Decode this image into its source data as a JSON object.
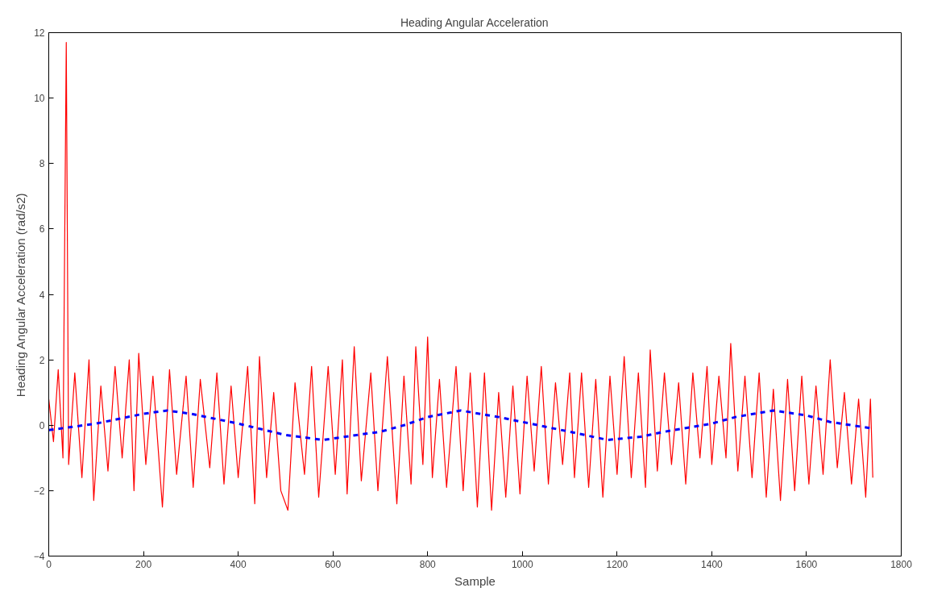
{
  "chart_data": {
    "type": "line",
    "title": "Heading Angular Acceleration",
    "xlabel": "Sample",
    "ylabel": "Heading Angular Acceleration (rad/s2)",
    "xlim": [
      0,
      1800
    ],
    "xticks": [
      0,
      200,
      400,
      600,
      800,
      1000,
      1200,
      1400,
      1600,
      1800
    ],
    "ylim": [
      -4,
      12
    ],
    "yticks": [
      -4,
      -2,
      0,
      2,
      4,
      6,
      8,
      10,
      12
    ],
    "grid": false,
    "series": [
      {
        "color": "#ff0000",
        "line_style": "solid",
        "x": [
          0,
          10,
          20,
          30,
          37,
          42,
          55,
          70,
          85,
          95,
          110,
          125,
          140,
          155,
          170,
          180,
          190,
          205,
          220,
          240,
          255,
          270,
          290,
          305,
          320,
          340,
          355,
          370,
          385,
          400,
          420,
          435,
          445,
          460,
          475,
          490,
          505,
          520,
          540,
          555,
          570,
          590,
          605,
          620,
          630,
          645,
          660,
          680,
          695,
          715,
          735,
          750,
          765,
          775,
          790,
          800,
          810,
          825,
          840,
          860,
          875,
          890,
          905,
          920,
          935,
          950,
          965,
          980,
          995,
          1010,
          1025,
          1040,
          1055,
          1070,
          1085,
          1100,
          1110,
          1125,
          1140,
          1155,
          1170,
          1185,
          1200,
          1215,
          1230,
          1245,
          1260,
          1270,
          1285,
          1300,
          1315,
          1330,
          1345,
          1360,
          1375,
          1390,
          1400,
          1415,
          1430,
          1440,
          1455,
          1470,
          1485,
          1500,
          1515,
          1530,
          1545,
          1560,
          1575,
          1590,
          1605,
          1620,
          1635,
          1650,
          1665,
          1680,
          1695,
          1710,
          1725,
          1735,
          1740
        ],
        "values": [
          0.8,
          -0.5,
          1.7,
          -1.0,
          11.7,
          -1.2,
          1.6,
          -1.6,
          2.0,
          -2.3,
          1.2,
          -1.4,
          1.8,
          -1.0,
          2.0,
          -2.0,
          2.2,
          -1.2,
          1.5,
          -2.5,
          1.7,
          -1.5,
          1.5,
          -1.9,
          1.4,
          -1.3,
          1.6,
          -1.8,
          1.2,
          -1.6,
          1.8,
          -2.4,
          2.1,
          -1.6,
          1.0,
          -2.0,
          -2.6,
          1.3,
          -1.5,
          1.8,
          -2.2,
          1.8,
          -1.5,
          2.0,
          -2.1,
          2.4,
          -1.7,
          1.6,
          -2.0,
          2.1,
          -2.4,
          1.5,
          -1.8,
          2.4,
          -1.2,
          2.7,
          -1.6,
          1.4,
          -1.9,
          1.8,
          -2.0,
          1.6,
          -2.5,
          1.6,
          -2.6,
          1.0,
          -2.2,
          1.2,
          -2.1,
          1.5,
          -1.4,
          1.8,
          -1.8,
          1.3,
          -1.2,
          1.6,
          -1.6,
          1.6,
          -1.9,
          1.4,
          -2.2,
          1.5,
          -1.5,
          2.1,
          -1.6,
          1.6,
          -1.9,
          2.3,
          -1.4,
          1.6,
          -1.2,
          1.3,
          -1.8,
          1.6,
          -1.0,
          1.8,
          -1.2,
          1.5,
          -1.0,
          2.5,
          -1.4,
          1.5,
          -1.6,
          1.6,
          -2.2,
          1.1,
          -2.3,
          1.4,
          -2.0,
          1.5,
          -1.8,
          1.2,
          -1.5,
          2.0,
          -1.3,
          1.0,
          -1.8,
          0.8,
          -2.2,
          0.8,
          -1.6
        ]
      },
      {
        "color": "#0000ff",
        "line_style": "dashed",
        "x": [
          0,
          100,
          200,
          250,
          300,
          400,
          500,
          580,
          650,
          700,
          750,
          800,
          870,
          950,
          1000,
          1100,
          1180,
          1250,
          1300,
          1400,
          1450,
          1530,
          1600,
          1650,
          1740
        ],
        "values": [
          -0.15,
          0.05,
          0.35,
          0.45,
          0.35,
          0.05,
          -0.3,
          -0.45,
          -0.3,
          -0.2,
          0.0,
          0.25,
          0.45,
          0.25,
          0.1,
          -0.2,
          -0.45,
          -0.35,
          -0.2,
          0.05,
          0.25,
          0.45,
          0.3,
          0.1,
          -0.1
        ]
      }
    ]
  }
}
